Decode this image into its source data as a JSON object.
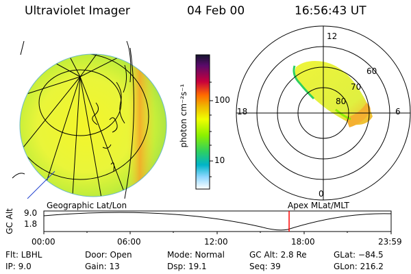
{
  "header": {
    "title": "Ultraviolet Imager",
    "date": "04 Feb 00",
    "time": "16:56:43 UT"
  },
  "colorbar": {
    "label": "photon cm⁻²s⁻¹",
    "ticks": [
      "100",
      "10"
    ],
    "colors": [
      "#1a1a3a",
      "#5a0a6a",
      "#c8003c",
      "#ff6a00",
      "#f0b400",
      "#f0ff00",
      "#8cf000",
      "#2ed060",
      "#00b4c8",
      "#90d8ff",
      "#ffffff"
    ]
  },
  "polar": {
    "mlt_labels": {
      "top": "12",
      "left": "18",
      "right": "6",
      "bottom": "0"
    },
    "lat_labels": [
      "60",
      "70",
      "80"
    ]
  },
  "timeline": {
    "left_title": "Geographic Lat/Lon",
    "right_title": "Apex  MLat/MLT",
    "y_axis_label": "GC Alt",
    "y_ticks": [
      "9.0",
      "1.8"
    ],
    "x_ticks": [
      "00:00",
      "06:00",
      "12:00",
      "18:00",
      "23:59"
    ],
    "marker_time_hours": 16.95,
    "marker_color": "#ff0000"
  },
  "info": {
    "row1": {
      "flt": "Flt:  LBHL",
      "door": "Door:  Open",
      "mode": "Mode:  Normal",
      "gcalt": "GC Alt:  2.8 Re",
      "glat": "GLat:  −84.5"
    },
    "row2": {
      "ip": "IP:  9.0",
      "gain": "Gain:  13",
      "dsp": "Dsp:    19.1",
      "seq": "Seq:  39",
      "glon": "GLon:  216.2"
    }
  }
}
